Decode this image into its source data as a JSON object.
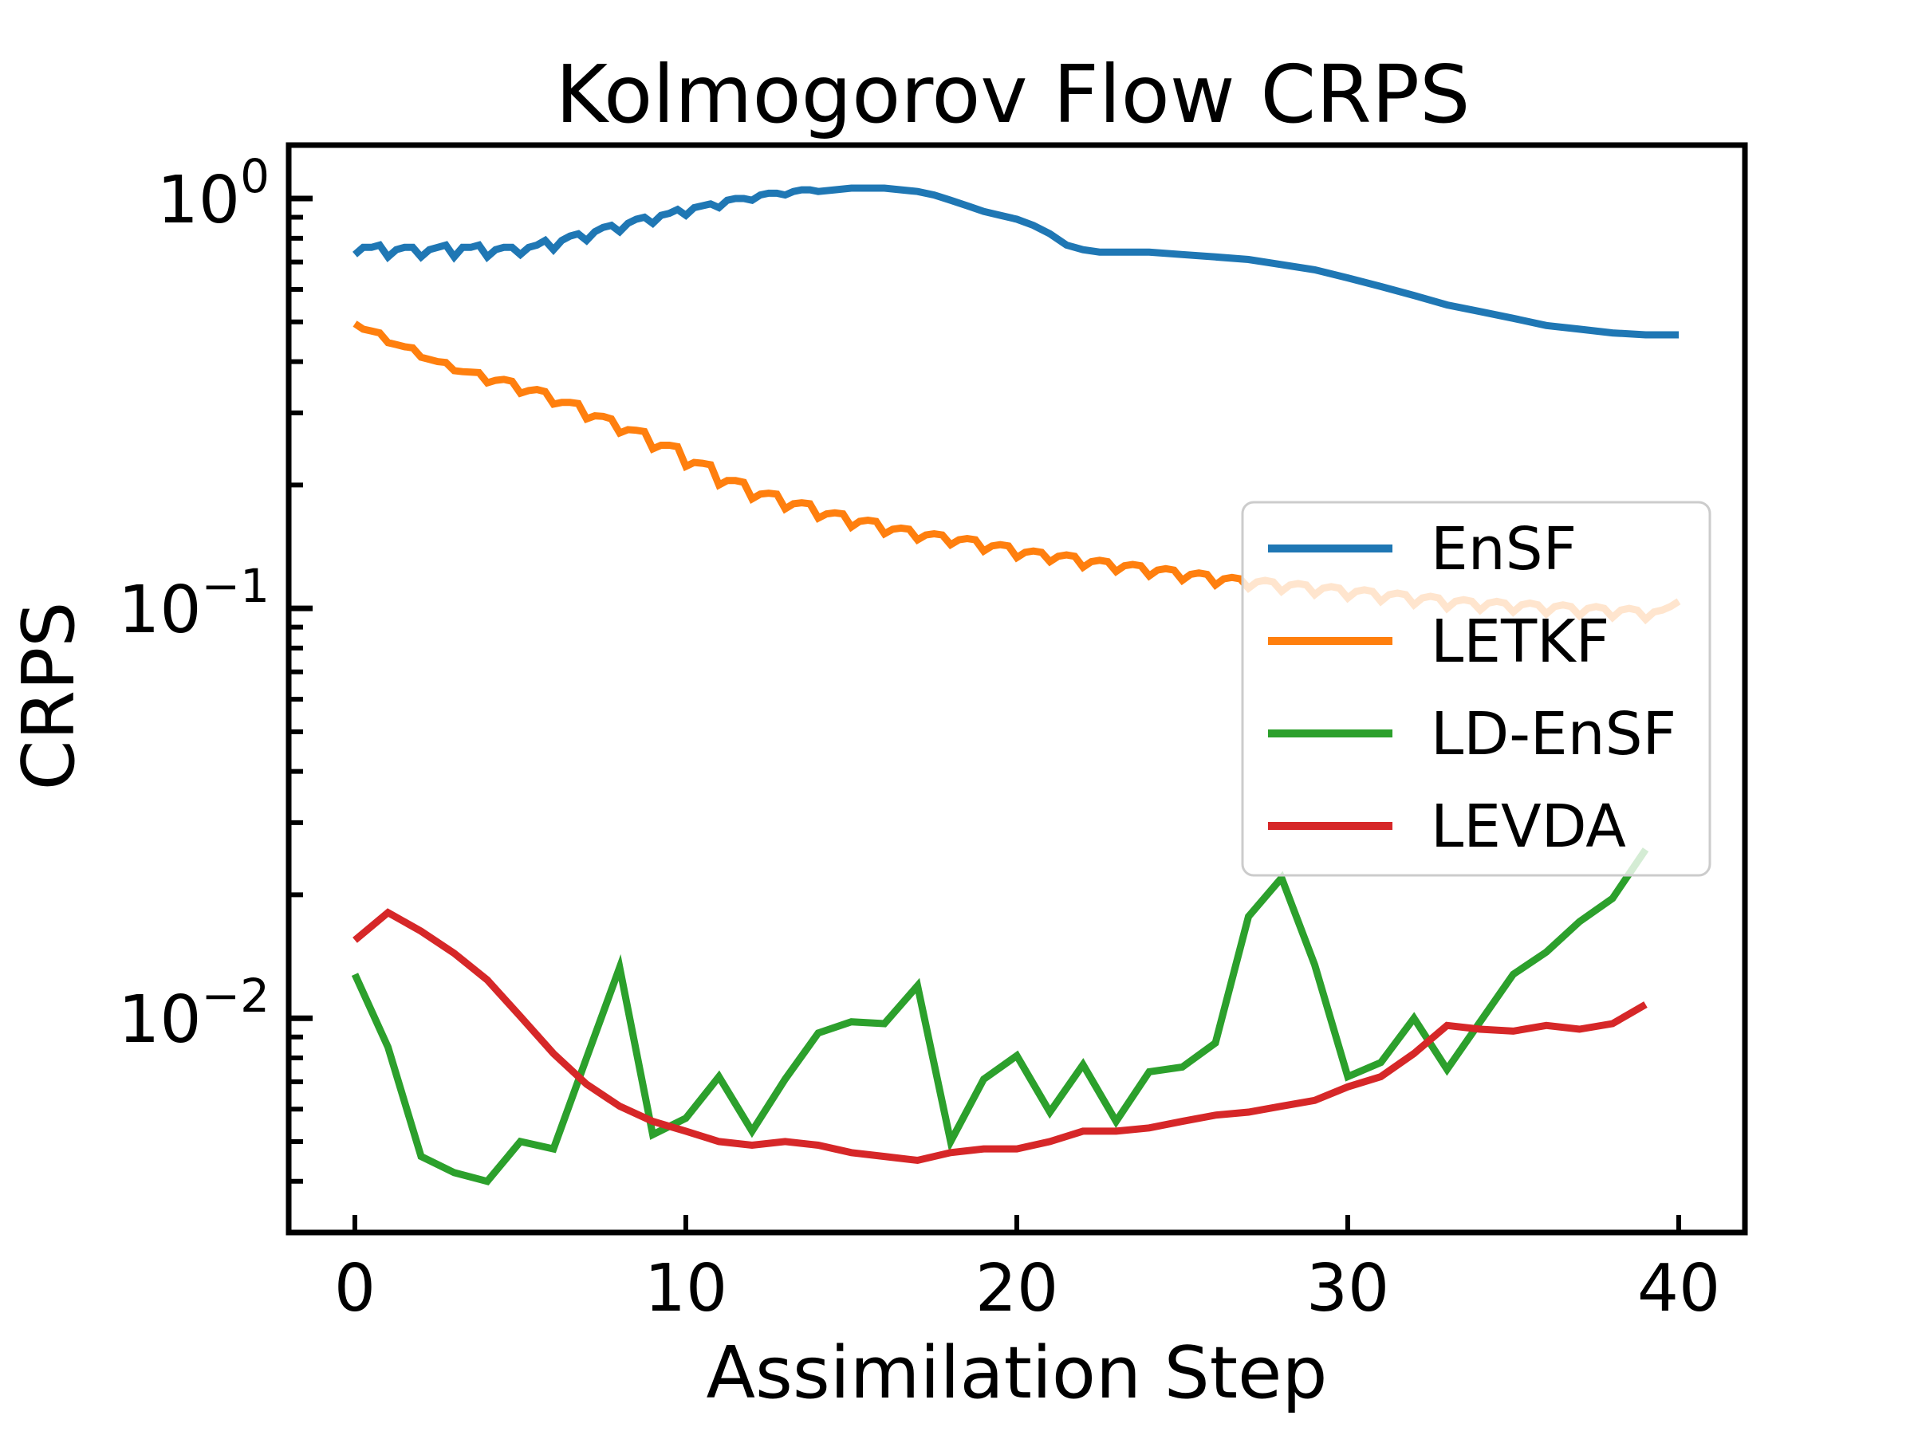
{
  "chart_data": {
    "type": "line",
    "title": "Kolmogorov Flow CRPS",
    "xlabel": "Assimilation Step",
    "ylabel": "CRPS",
    "xlim": [
      -2,
      42
    ],
    "ylim": [
      0.003,
      1.35
    ],
    "yscale": "log",
    "grid": false,
    "legend_position": "right",
    "x_ticks": [
      0,
      10,
      20,
      30,
      40
    ],
    "y_ticks": [
      {
        "value": 1,
        "base": "10",
        "exp": "0"
      },
      {
        "value": 0.1,
        "base": "10",
        "exp": "−1"
      },
      {
        "value": 0.01,
        "base": "10",
        "exp": "−2"
      }
    ],
    "series": [
      {
        "name": "EnSF",
        "color": "#1f77b4",
        "x": [
          0,
          0.25,
          0.5,
          0.75,
          1,
          1.25,
          1.5,
          1.75,
          2,
          2.25,
          2.5,
          2.75,
          3,
          3.25,
          3.5,
          3.75,
          4,
          4.25,
          4.5,
          4.75,
          5,
          5.25,
          5.5,
          5.75,
          6,
          6.25,
          6.5,
          6.75,
          7,
          7.25,
          7.5,
          7.75,
          8,
          8.25,
          8.5,
          8.75,
          9,
          9.25,
          9.5,
          9.75,
          10,
          10.25,
          10.5,
          10.75,
          11,
          11.25,
          11.5,
          11.75,
          12,
          12.25,
          12.5,
          12.75,
          13,
          13.25,
          13.5,
          13.75,
          14,
          14.5,
          15,
          15.5,
          16,
          16.5,
          17,
          17.5,
          18,
          18.5,
          19,
          19.5,
          20,
          20.5,
          21,
          21.5,
          22,
          22.5,
          23,
          24,
          25,
          26,
          27,
          28,
          29,
          30,
          31,
          32,
          33,
          34,
          35,
          36,
          37,
          38,
          39,
          40
        ],
        "values": [
          0.73,
          0.76,
          0.76,
          0.77,
          0.72,
          0.75,
          0.76,
          0.76,
          0.72,
          0.75,
          0.76,
          0.77,
          0.72,
          0.76,
          0.76,
          0.77,
          0.72,
          0.75,
          0.76,
          0.76,
          0.73,
          0.76,
          0.77,
          0.79,
          0.75,
          0.79,
          0.81,
          0.82,
          0.79,
          0.83,
          0.85,
          0.86,
          0.83,
          0.87,
          0.89,
          0.9,
          0.87,
          0.91,
          0.92,
          0.94,
          0.91,
          0.95,
          0.96,
          0.97,
          0.95,
          0.99,
          1.0,
          1.0,
          0.99,
          1.02,
          1.03,
          1.03,
          1.02,
          1.04,
          1.05,
          1.05,
          1.04,
          1.05,
          1.06,
          1.06,
          1.06,
          1.05,
          1.04,
          1.02,
          0.99,
          0.96,
          0.93,
          0.91,
          0.89,
          0.86,
          0.82,
          0.77,
          0.75,
          0.74,
          0.74,
          0.74,
          0.73,
          0.72,
          0.71,
          0.69,
          0.67,
          0.64,
          0.61,
          0.58,
          0.55,
          0.53,
          0.51,
          0.49,
          0.48,
          0.47,
          0.465,
          0.465
        ]
      },
      {
        "name": "LETKF",
        "color": "#ff7f0e",
        "x": [
          0,
          0.25,
          0.5,
          0.75,
          1,
          1.25,
          1.5,
          1.75,
          2,
          2.25,
          2.5,
          2.75,
          3,
          3.25,
          3.5,
          3.75,
          4,
          4.25,
          4.5,
          4.75,
          5,
          5.25,
          5.5,
          5.75,
          6,
          6.25,
          6.5,
          6.75,
          7,
          7.25,
          7.5,
          7.75,
          8,
          8.25,
          8.5,
          8.75,
          9,
          9.25,
          9.5,
          9.75,
          10,
          10.25,
          10.5,
          10.75,
          11,
          11.25,
          11.5,
          11.75,
          12,
          12.25,
          12.5,
          12.75,
          13,
          13.25,
          13.5,
          13.75,
          14,
          14.25,
          14.5,
          14.75,
          15,
          15.25,
          15.5,
          15.75,
          16,
          16.25,
          16.5,
          16.75,
          17,
          17.25,
          17.5,
          17.75,
          18,
          18.25,
          18.5,
          18.75,
          19,
          19.25,
          19.5,
          19.75,
          20,
          20.25,
          20.5,
          20.75,
          21,
          21.25,
          21.5,
          21.75,
          22,
          22.25,
          22.5,
          22.75,
          23,
          23.25,
          23.5,
          23.75,
          24,
          24.25,
          24.5,
          24.75,
          25,
          25.25,
          25.5,
          25.75,
          26,
          26.25,
          26.5,
          26.75,
          27,
          27.25,
          27.5,
          27.75,
          28,
          28.25,
          28.5,
          28.75,
          29,
          29.25,
          29.5,
          29.75,
          30,
          30.25,
          30.5,
          30.75,
          31,
          31.25,
          31.5,
          31.75,
          32,
          32.25,
          32.5,
          32.75,
          33,
          33.25,
          33.5,
          33.75,
          34,
          34.25,
          34.5,
          34.75,
          35,
          35.25,
          35.5,
          35.75,
          36,
          36.25,
          36.5,
          36.75,
          37,
          37.25,
          37.5,
          37.75,
          38,
          38.25,
          38.5,
          38.75,
          39,
          39.25,
          39.5,
          39.75,
          40
        ],
        "values": [
          0.495,
          0.48,
          0.475,
          0.47,
          0.445,
          0.44,
          0.435,
          0.432,
          0.41,
          0.405,
          0.4,
          0.398,
          0.38,
          0.378,
          0.377,
          0.376,
          0.355,
          0.36,
          0.362,
          0.358,
          0.335,
          0.34,
          0.342,
          0.338,
          0.315,
          0.318,
          0.318,
          0.316,
          0.29,
          0.295,
          0.294,
          0.29,
          0.268,
          0.273,
          0.272,
          0.27,
          0.245,
          0.25,
          0.25,
          0.248,
          0.222,
          0.227,
          0.226,
          0.224,
          0.2,
          0.205,
          0.205,
          0.203,
          0.185,
          0.19,
          0.191,
          0.19,
          0.175,
          0.18,
          0.181,
          0.18,
          0.166,
          0.17,
          0.171,
          0.17,
          0.158,
          0.163,
          0.164,
          0.163,
          0.152,
          0.156,
          0.157,
          0.156,
          0.147,
          0.151,
          0.152,
          0.151,
          0.143,
          0.147,
          0.148,
          0.147,
          0.138,
          0.142,
          0.143,
          0.142,
          0.133,
          0.137,
          0.138,
          0.137,
          0.13,
          0.134,
          0.135,
          0.134,
          0.126,
          0.13,
          0.131,
          0.13,
          0.123,
          0.127,
          0.128,
          0.127,
          0.12,
          0.124,
          0.125,
          0.124,
          0.117,
          0.121,
          0.122,
          0.121,
          0.114,
          0.118,
          0.119,
          0.118,
          0.112,
          0.116,
          0.117,
          0.116,
          0.11,
          0.114,
          0.115,
          0.114,
          0.108,
          0.112,
          0.113,
          0.112,
          0.106,
          0.11,
          0.111,
          0.11,
          0.104,
          0.108,
          0.109,
          0.108,
          0.102,
          0.106,
          0.107,
          0.106,
          0.1,
          0.104,
          0.105,
          0.104,
          0.099,
          0.103,
          0.104,
          0.103,
          0.098,
          0.102,
          0.103,
          0.102,
          0.097,
          0.101,
          0.102,
          0.101,
          0.096,
          0.1,
          0.101,
          0.1,
          0.095,
          0.099,
          0.1,
          0.099,
          0.094,
          0.098,
          0.099,
          0.101,
          0.104
        ]
      },
      {
        "name": "LD-EnSF",
        "color": "#2ca02c",
        "x": [
          0,
          1,
          2,
          3,
          4,
          5,
          6,
          7,
          8,
          9,
          10,
          11,
          12,
          13,
          14,
          15,
          16,
          17,
          18,
          19,
          20,
          21,
          22,
          23,
          24,
          25,
          26,
          27,
          28,
          29,
          30,
          31,
          32,
          33,
          34,
          35,
          36,
          37,
          38,
          39
        ],
        "values": [
          0.0128,
          0.0085,
          0.0046,
          0.0042,
          0.004,
          0.005,
          0.0048,
          0.008,
          0.0133,
          0.0052,
          0.0057,
          0.0072,
          0.0053,
          0.0071,
          0.0092,
          0.0098,
          0.0097,
          0.012,
          0.005,
          0.0071,
          0.0081,
          0.0059,
          0.0077,
          0.0056,
          0.0074,
          0.0076,
          0.0087,
          0.0177,
          0.022,
          0.0135,
          0.0072,
          0.0078,
          0.01,
          0.0075,
          0.0098,
          0.0128,
          0.0145,
          0.0172,
          0.0196,
          0.0258
        ]
      },
      {
        "name": "LEVDA",
        "color": "#d62728",
        "x": [
          0,
          1,
          2,
          3,
          4,
          5,
          6,
          7,
          8,
          9,
          10,
          11,
          12,
          13,
          14,
          15,
          16,
          17,
          18,
          19,
          20,
          21,
          22,
          23,
          24,
          25,
          26,
          27,
          28,
          29,
          30,
          31,
          32,
          33,
          34,
          35,
          36,
          37,
          38,
          39
        ],
        "values": [
          0.0155,
          0.0181,
          0.0163,
          0.0144,
          0.0124,
          0.0101,
          0.0082,
          0.0069,
          0.0061,
          0.0056,
          0.0053,
          0.005,
          0.0049,
          0.005,
          0.0049,
          0.0047,
          0.0046,
          0.0045,
          0.0047,
          0.0048,
          0.0048,
          0.005,
          0.0053,
          0.0053,
          0.0054,
          0.0056,
          0.0058,
          0.0059,
          0.0061,
          0.0063,
          0.0068,
          0.0072,
          0.0082,
          0.0096,
          0.0094,
          0.0093,
          0.0096,
          0.0094,
          0.0097,
          0.0108
        ]
      }
    ]
  }
}
